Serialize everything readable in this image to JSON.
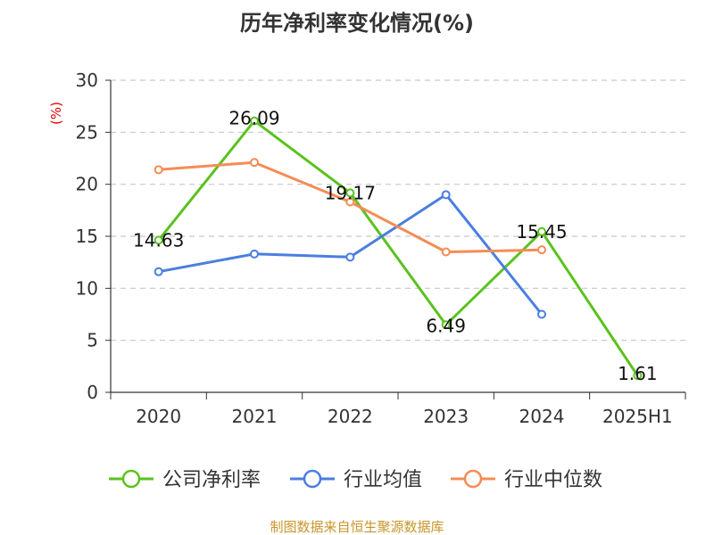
{
  "chart_data": {
    "type": "line",
    "title": "历年净利率变化情况(%)",
    "ylabel": "(%)",
    "categories": [
      "2020",
      "2021",
      "2022",
      "2023",
      "2024",
      "2025H1"
    ],
    "ylim": [
      0,
      30
    ],
    "yticks": [
      0,
      5,
      10,
      15,
      20,
      25,
      30
    ],
    "grid": true,
    "legend_position": "bottom",
    "series": [
      {
        "name": "公司净利率",
        "color": "#5ac21e",
        "values": [
          14.63,
          26.09,
          19.17,
          6.49,
          15.45,
          1.61
        ],
        "labels": [
          "14.63",
          "26.09",
          "19.17",
          "6.49",
          "15.45",
          "1.61"
        ]
      },
      {
        "name": "行业均值",
        "color": "#4a7ee0",
        "values": [
          11.6,
          13.3,
          13.0,
          19.0,
          7.5,
          null
        ]
      },
      {
        "name": "行业中位数",
        "color": "#f58c55",
        "values": [
          21.4,
          22.1,
          18.3,
          13.5,
          13.7,
          null
        ]
      }
    ],
    "source": "制图数据来自恒生聚源数据库"
  }
}
